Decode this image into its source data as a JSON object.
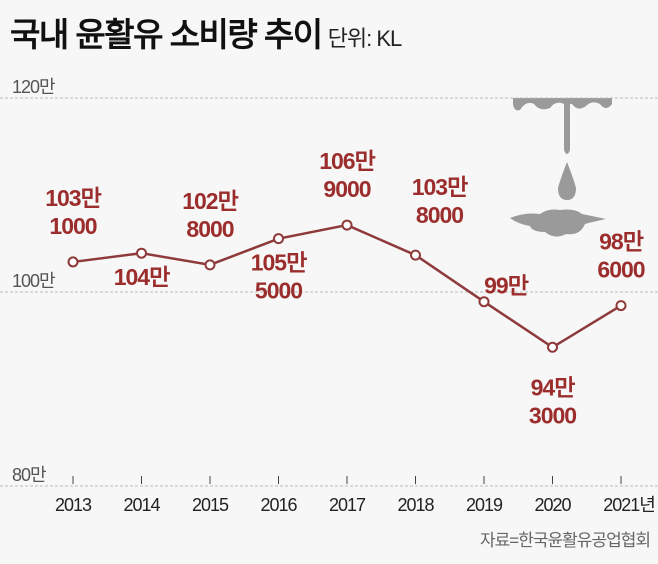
{
  "title": "국내 윤활유 소비량 추이",
  "unit": "단위: KL",
  "source": "자료=한국윤활유공업협회",
  "colors": {
    "line": "#8e3a3a",
    "label": "#9b2d2d",
    "grid": "#bbbbbb",
    "background": "#f7f7f7"
  },
  "decoration": "oil-drip-illustration",
  "chart_data": {
    "type": "line",
    "title": "국내 윤활유 소비량 추이",
    "ylabel": "단위: KL",
    "ylim": [
      800000,
      1200000
    ],
    "yticks": [
      {
        "value": 1200000,
        "label": "120만"
      },
      {
        "value": 1000000,
        "label": "100만"
      },
      {
        "value": 800000,
        "label": "80만"
      }
    ],
    "grid": true,
    "categories": [
      "2013",
      "2014",
      "2015",
      "2016",
      "2017",
      "2018",
      "2019",
      "2020",
      "2021년"
    ],
    "values": [
      1031000,
      1040000,
      1028000,
      1055000,
      1069000,
      1038000,
      990000,
      943000,
      986000
    ],
    "data_labels": [
      [
        "103만",
        "1000"
      ],
      [
        "104만"
      ],
      [
        "102만",
        "8000"
      ],
      [
        "105만",
        "5000"
      ],
      [
        "106만",
        "9000"
      ],
      [
        "103만",
        "8000"
      ],
      [
        "99만"
      ],
      [
        "94만",
        "3000"
      ],
      [
        "98만",
        "6000"
      ]
    ]
  }
}
